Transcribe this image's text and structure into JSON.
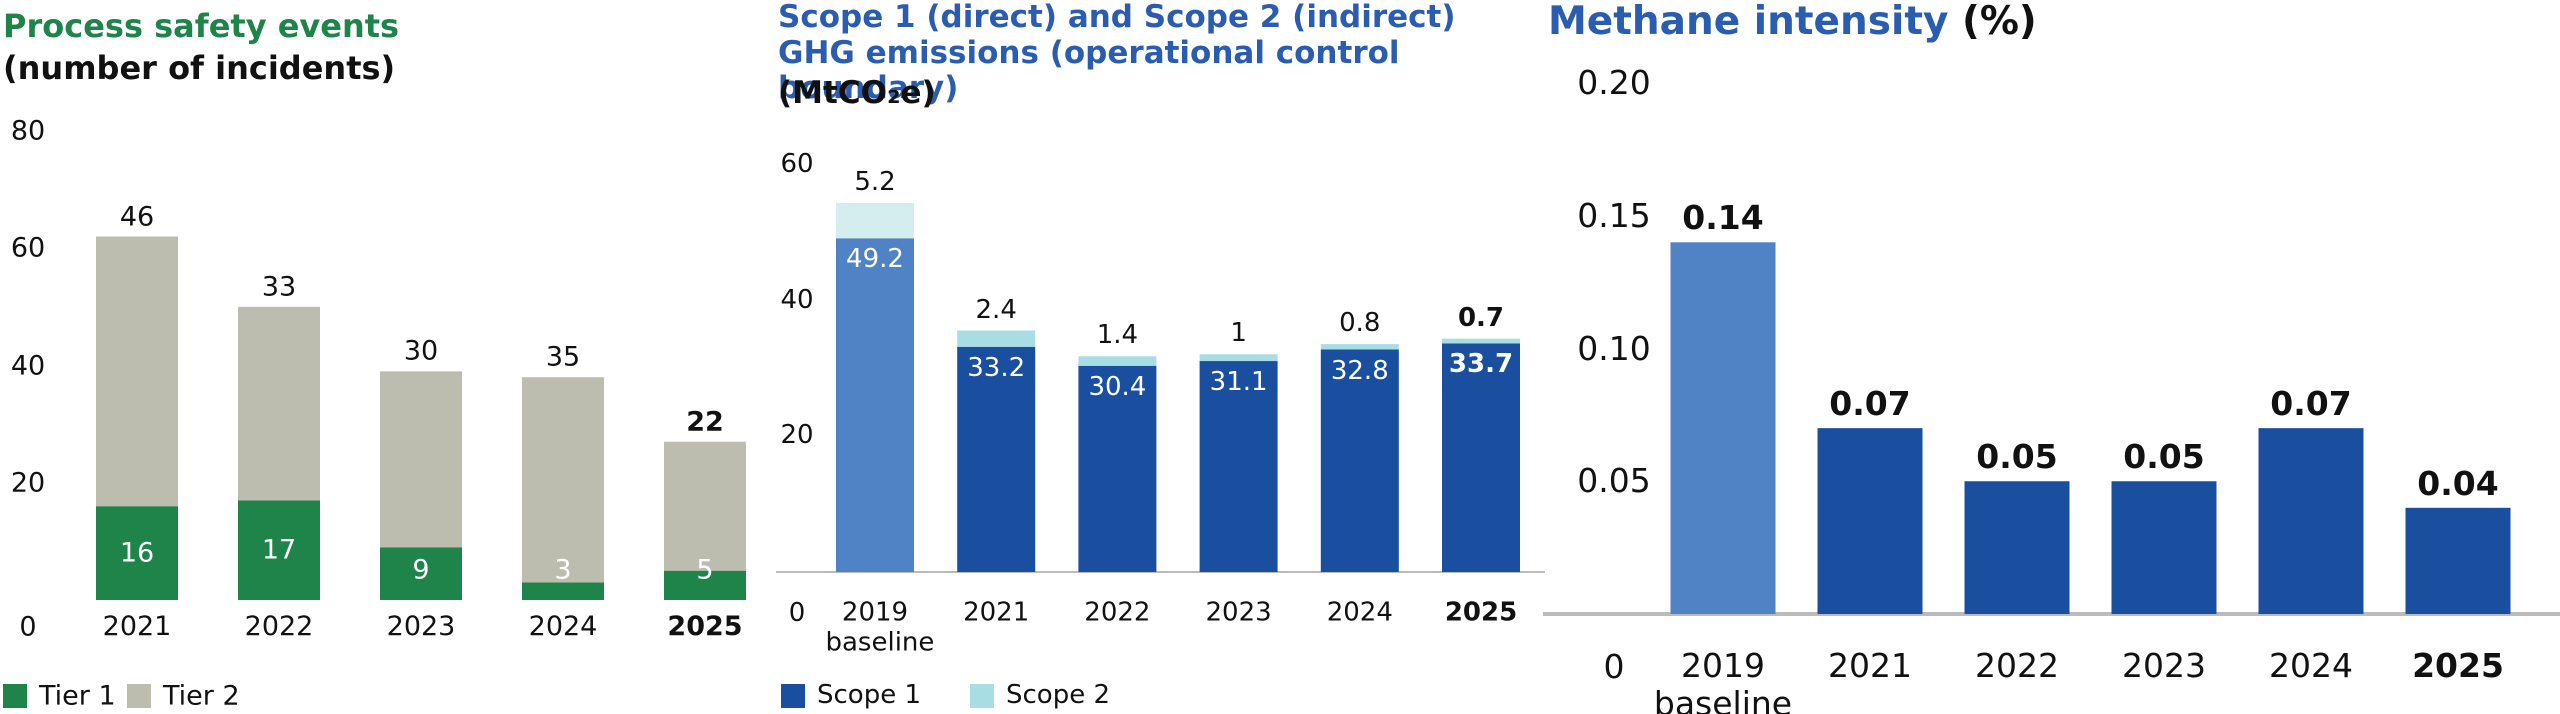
{
  "chart_data": [
    {
      "type": "stacked_bar",
      "title": "Process safety events",
      "subtitle": "(number of incidents)",
      "categories": [
        "2021",
        "2022",
        "2023",
        "2024",
        "2025"
      ],
      "series": [
        {
          "name": "Tier 1",
          "color": "#1e8449",
          "values": [
            16,
            17,
            9,
            3,
            5
          ]
        },
        {
          "name": "Tier 2",
          "color": "#bcbdae",
          "values": [
            46,
            33,
            30,
            35,
            22
          ]
        }
      ],
      "ylim": [
        0,
        80
      ],
      "yticks": [
        0,
        20,
        40,
        60,
        80
      ],
      "grid": false
    },
    {
      "type": "stacked_bar",
      "title": "Scope 1 (direct) and Scope 2 (indirect) GHG emissions (operational control boundary)",
      "subtitle": "(MtCO₂e)",
      "categories": [
        "2019 baseline",
        "2021",
        "2022",
        "2023",
        "2024",
        "2025"
      ],
      "series": [
        {
          "name": "Scope 1",
          "color": "#1a4fa0",
          "colors": [
            "#5083c6",
            "#1a4fa0",
            "#1a4fa0",
            "#1a4fa0",
            "#1a4fa0",
            "#1a4fa0"
          ],
          "values": [
            49.2,
            33.2,
            30.4,
            31.1,
            32.8,
            33.7
          ]
        },
        {
          "name": "Scope 2",
          "color": "#a8dde3",
          "colors": [
            "#d4eef0",
            "#a8dde3",
            "#a8dde3",
            "#a8dde3",
            "#a8dde3",
            "#a8dde3"
          ],
          "values": [
            5.2,
            2.4,
            1.4,
            1.0,
            0.8,
            0.7
          ]
        }
      ],
      "ylim": [
        0,
        60
      ],
      "yticks": [
        0,
        20,
        40,
        60
      ],
      "grid": false
    },
    {
      "type": "bar",
      "title": "Methane intensity",
      "unit": "(%)",
      "categories": [
        "2019 baseline",
        "2021",
        "2022",
        "2023",
        "2024",
        "2025"
      ],
      "values": [
        0.14,
        0.07,
        0.05,
        0.05,
        0.07,
        0.04
      ],
      "colors": [
        "#5083c6",
        "#1a4fa0",
        "#1a4fa0",
        "#1a4fa0",
        "#1a4fa0",
        "#1a4fa0"
      ],
      "ylim": [
        0,
        0.2
      ],
      "yticks": [
        0,
        0.05,
        {
          "value": 0.1,
          "label": "0.10"
        },
        0.15,
        {
          "value": 0.2,
          "label": "0.20"
        }
      ],
      "grid": false
    }
  ]
}
